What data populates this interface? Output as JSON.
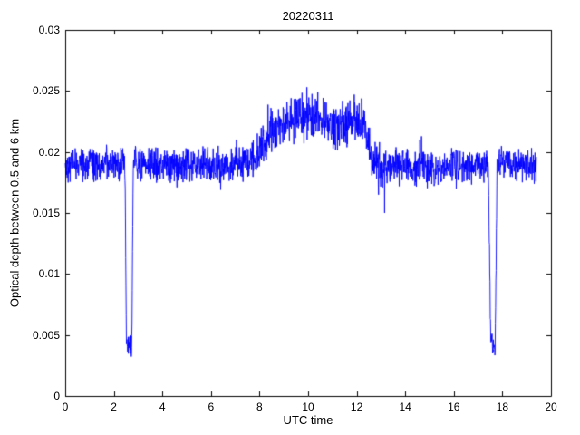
{
  "figure": {
    "background": "#ffffff"
  },
  "chart_data": {
    "type": "line",
    "title": "20220311",
    "xlabel": "UTC time",
    "ylabel": "Optical depth between 0.5 and 6 km",
    "xlim": [
      0,
      20
    ],
    "ylim": [
      0,
      0.03
    ],
    "xticks": [
      0,
      2,
      4,
      6,
      8,
      10,
      12,
      14,
      16,
      18,
      20
    ],
    "xtick_labels": [
      "0",
      "2",
      "4",
      "6",
      "8",
      "10",
      "12",
      "14",
      "16",
      "18",
      "20"
    ],
    "yticks": [
      0,
      0.005,
      0.01,
      0.015,
      0.02,
      0.025,
      0.03
    ],
    "ytick_labels": [
      "0",
      "0.005",
      "0.01",
      "0.015",
      "0.02",
      "0.025",
      "0.03"
    ],
    "line_color": "#0000ff",
    "axis_color": "#000000",
    "grid": false,
    "legend": null,
    "x_range_data": [
      0.0,
      19.4
    ],
    "sample_step": 0.01,
    "noise_seed": 42,
    "envelope_keypoints": [
      [
        0.0,
        0.019,
        0.0011
      ],
      [
        2.46,
        0.019,
        0.0011
      ],
      [
        2.52,
        0.0042,
        0.0006
      ],
      [
        2.74,
        0.004,
        0.0007
      ],
      [
        2.8,
        0.019,
        0.0011
      ],
      [
        5.0,
        0.0189,
        0.0011
      ],
      [
        7.3,
        0.019,
        0.0011
      ],
      [
        7.9,
        0.0198,
        0.0013
      ],
      [
        8.5,
        0.0218,
        0.0014
      ],
      [
        9.3,
        0.0226,
        0.0015
      ],
      [
        10.2,
        0.0228,
        0.0015
      ],
      [
        11.0,
        0.0221,
        0.0015
      ],
      [
        11.8,
        0.0224,
        0.0015
      ],
      [
        12.35,
        0.0222,
        0.0014
      ],
      [
        12.6,
        0.0196,
        0.0013
      ],
      [
        13.1,
        0.0188,
        0.0014
      ],
      [
        14.0,
        0.0187,
        0.0011
      ],
      [
        17.42,
        0.0188,
        0.0011
      ],
      [
        17.52,
        0.0046,
        0.0007
      ],
      [
        17.7,
        0.0038,
        0.0007
      ],
      [
        17.78,
        0.019,
        0.0011
      ],
      [
        19.4,
        0.0189,
        0.0011
      ]
    ],
    "spikes": [
      {
        "x": 4.6,
        "y": 0.0171
      },
      {
        "x": 6.4,
        "y": 0.0169
      },
      {
        "x": 7.05,
        "y": 0.021
      },
      {
        "x": 9.95,
        "y": 0.0253
      },
      {
        "x": 10.4,
        "y": 0.0249
      },
      {
        "x": 11.9,
        "y": 0.0247
      },
      {
        "x": 12.9,
        "y": 0.0165
      },
      {
        "x": 13.15,
        "y": 0.015
      },
      {
        "x": 14.6,
        "y": 0.021
      },
      {
        "x": 16.1,
        "y": 0.017
      }
    ]
  }
}
